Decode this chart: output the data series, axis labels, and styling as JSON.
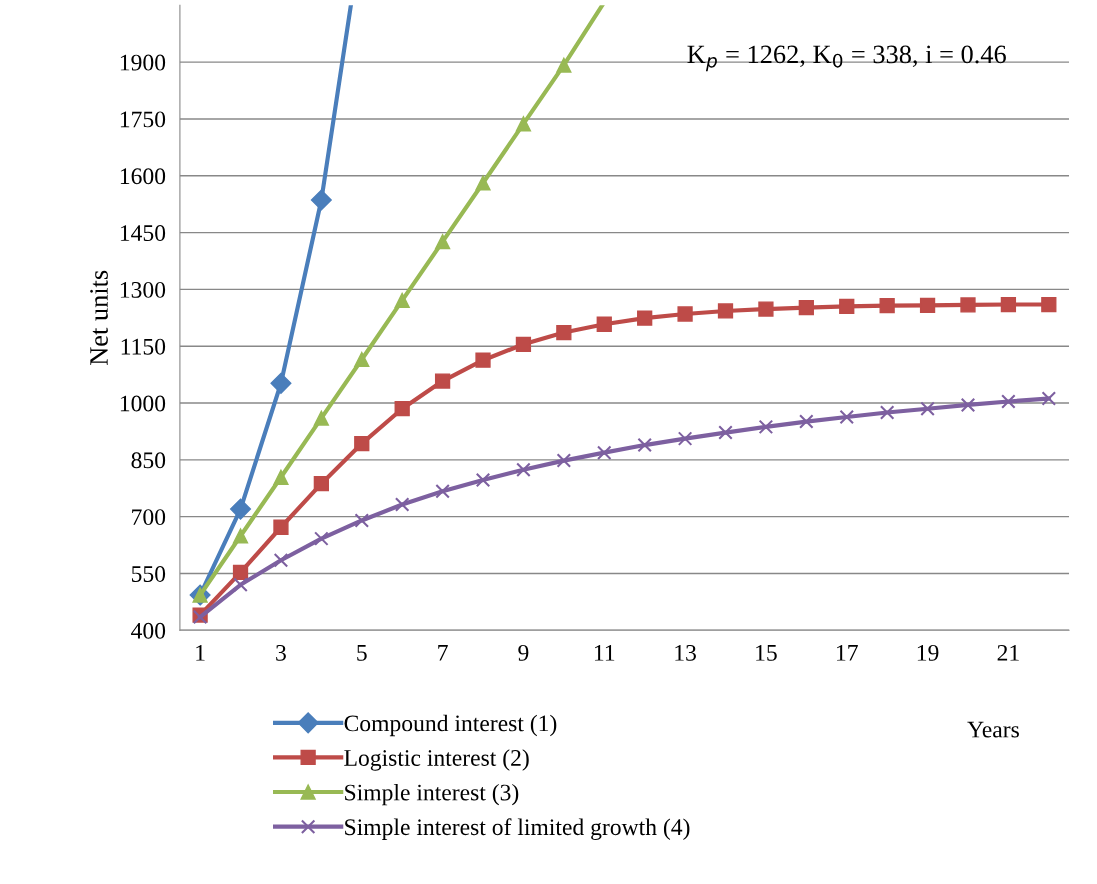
{
  "chart_data": {
    "type": "line",
    "xlabel": "Years",
    "ylabel": "Net units",
    "annotations": [
      "K$_{p}$ = 1262, K$_{0}$ = 338, i = 0.46"
    ],
    "xlim": [
      0.5,
      22.5
    ],
    "xticks": [
      1,
      3,
      5,
      7,
      9,
      11,
      13,
      15,
      17,
      19,
      21
    ],
    "ylim": [
      400,
      2050
    ],
    "yticks": [
      400,
      550,
      700,
      850,
      1000,
      1150,
      1300,
      1450,
      1600,
      1750,
      1900
    ],
    "grid": "y",
    "legend": "bottom",
    "line_style": "solid",
    "series": [
      {
        "name": "Compound interest (1)",
        "color": "#4a7ebb",
        "marker": "diamond",
        "x": [
          1,
          2,
          3,
          4,
          4.73
        ],
        "values": [
          493,
          720,
          1052,
          1536,
          2050
        ]
      },
      {
        "name": "Logistic interest (2)",
        "color": "#be4b48",
        "marker": "square",
        "x": [
          1,
          2,
          3,
          4,
          5,
          6,
          7,
          8,
          9,
          10,
          11,
          12,
          13,
          14,
          15,
          16,
          17,
          18,
          19,
          20,
          21,
          22
        ],
        "values": [
          440,
          553,
          672,
          787,
          893,
          985,
          1058,
          1113,
          1155,
          1186,
          1208,
          1224,
          1235,
          1243,
          1248,
          1252,
          1255,
          1257,
          1258,
          1259,
          1260,
          1260
        ]
      },
      {
        "name": "Simple interest (3)",
        "color": "#98b954",
        "marker": "triangle",
        "x": [
          1,
          2,
          3,
          4,
          5,
          6,
          7,
          8,
          9,
          10,
          10.95
        ],
        "values": [
          493,
          649,
          804,
          960,
          1115,
          1271,
          1426,
          1581,
          1737,
          1892,
          2050
        ]
      },
      {
        "name": "Simple interest of limited growth (4)",
        "color": "#7d60a0",
        "marker": "cross",
        "x": [
          1,
          2,
          3,
          4,
          5,
          6,
          7,
          8,
          9,
          10,
          11,
          12,
          13,
          14,
          15,
          16,
          17,
          18,
          19,
          20,
          21,
          22
        ],
        "values": [
          435,
          520,
          585,
          642,
          690,
          732,
          767,
          797,
          824,
          848,
          869,
          889,
          906,
          922,
          937,
          951,
          963,
          975,
          985,
          995,
          1004,
          1012
        ]
      }
    ]
  }
}
